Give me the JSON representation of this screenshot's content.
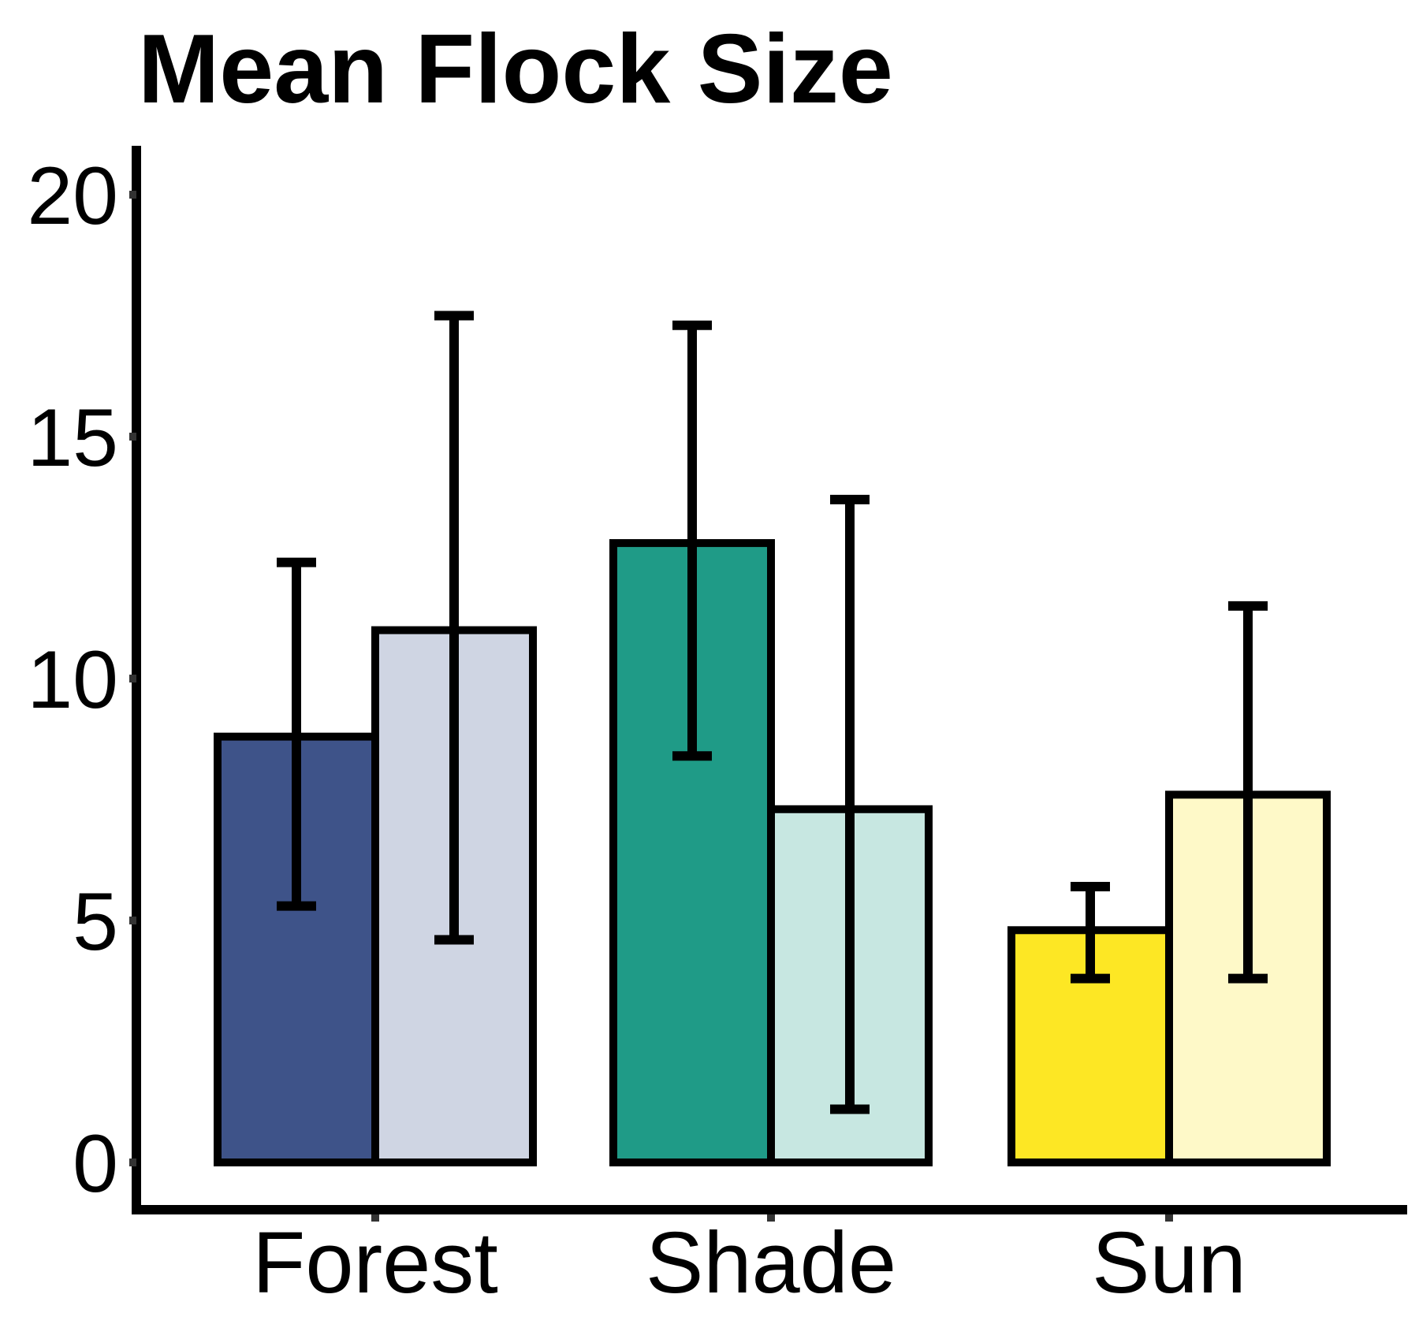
{
  "chart_data": {
    "type": "bar",
    "title": "Mean Flock Size",
    "xlabel": "",
    "ylabel": "",
    "ylim": [
      0,
      20
    ],
    "yticks": [
      0,
      5,
      10,
      15,
      20
    ],
    "categories": [
      "Forest",
      "Shade",
      "Sun"
    ],
    "bars": [
      {
        "category": "Forest",
        "value": 8.8,
        "err_low": 5.3,
        "err_high": 12.4,
        "color": "#3e5389"
      },
      {
        "category": "Forest",
        "value": 11.0,
        "err_low": 4.6,
        "err_high": 17.5,
        "color": "#cfd5e3"
      },
      {
        "category": "Shade",
        "value": 12.8,
        "err_low": 8.4,
        "err_high": 17.3,
        "color": "#1f9b87"
      },
      {
        "category": "Shade",
        "value": 7.3,
        "err_low": 1.1,
        "err_high": 13.7,
        "color": "#c7e7e1"
      },
      {
        "category": "Sun",
        "value": 4.8,
        "err_low": 3.8,
        "err_high": 5.7,
        "color": "#fde724"
      },
      {
        "category": "Sun",
        "value": 7.6,
        "err_low": 3.8,
        "err_high": 11.5,
        "color": "#fef9c8"
      }
    ],
    "grid": false,
    "legend": "none"
  }
}
